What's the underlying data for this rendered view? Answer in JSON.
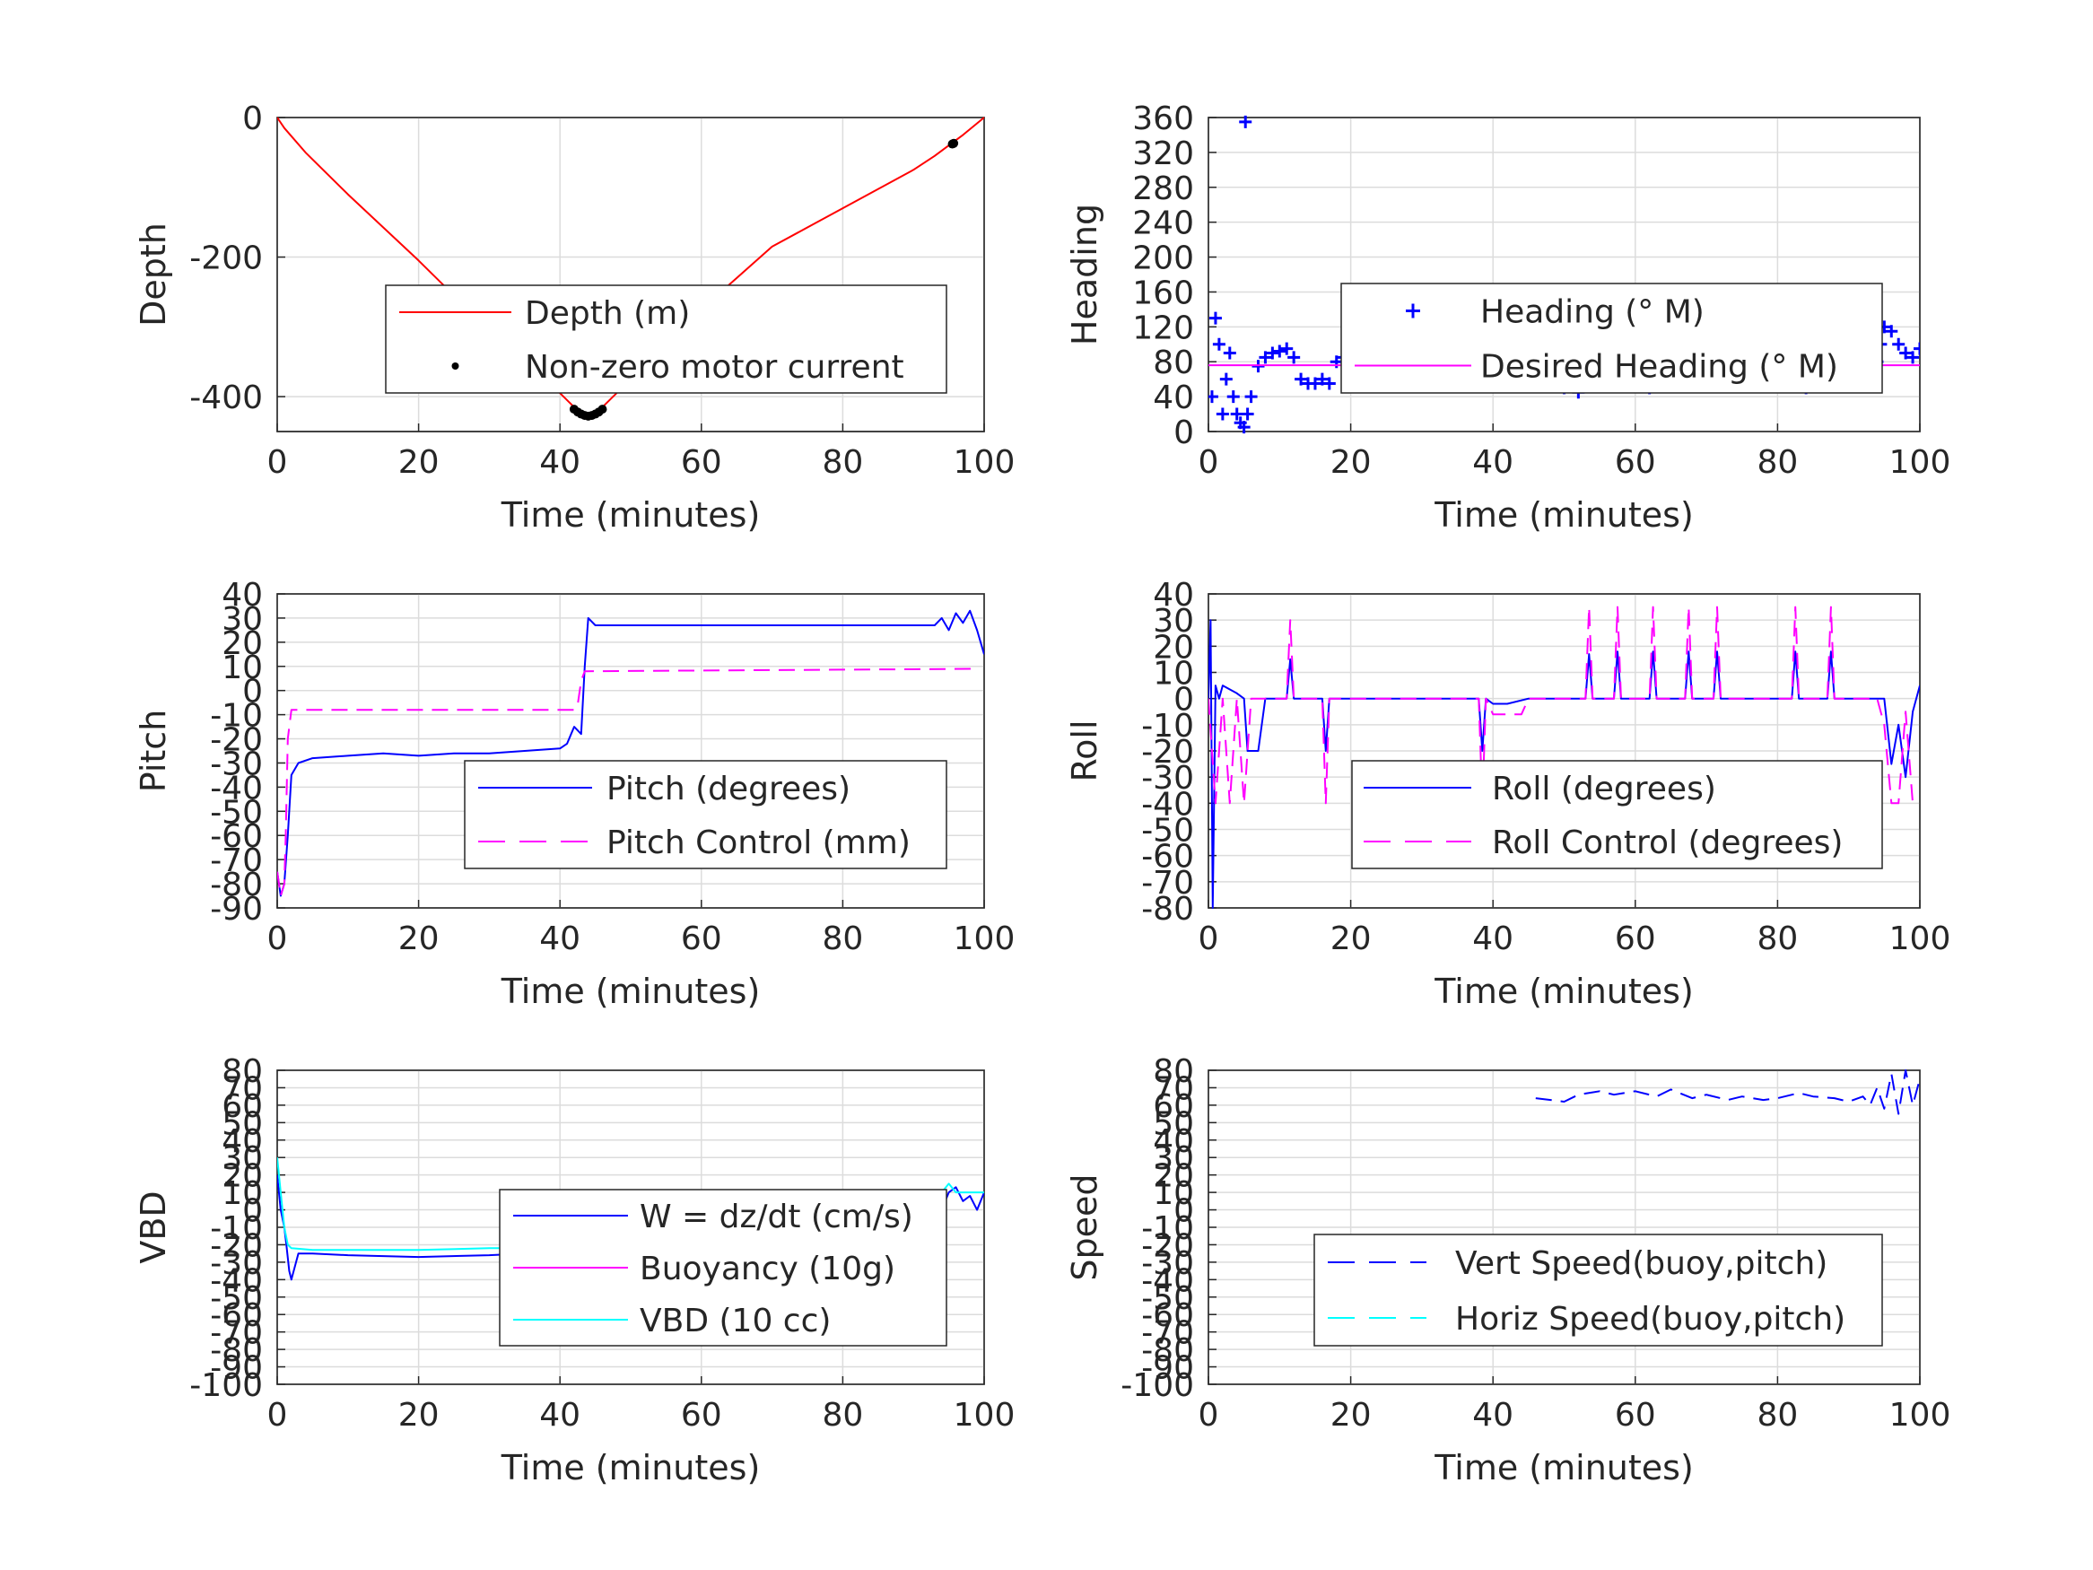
{
  "chart_data": [
    {
      "type": "line",
      "xlabel": "Time (minutes)",
      "ylabel": "Depth",
      "xlim": [
        0,
        100
      ],
      "ylim": [
        -450,
        0
      ],
      "xticks": [
        0,
        20,
        40,
        60,
        80,
        100
      ],
      "yticks": [
        -400,
        -200,
        0
      ],
      "grid": true,
      "legend_placement": "center-right",
      "series": [
        {
          "name": "Depth (m)",
          "color": "#ff0000",
          "style": "solid",
          "marker": "none",
          "x": [
            0,
            1,
            4,
            10,
            20,
            30,
            40,
            42,
            43,
            44,
            45,
            46,
            50,
            60,
            70,
            80,
            90,
            93,
            95,
            97,
            100
          ],
          "y": [
            0,
            -15,
            -50,
            -110,
            -205,
            -305,
            -395,
            -415,
            -425,
            -428,
            -425,
            -415,
            -375,
            -275,
            -185,
            -130,
            -75,
            -55,
            -40,
            -25,
            0
          ]
        },
        {
          "name": "Non-zero motor current",
          "color": "#000000",
          "style": "none",
          "marker": "dot",
          "x": [
            42,
            42.5,
            43,
            43.5,
            44,
            44.5,
            45,
            45.5,
            46,
            95.5,
            95.7
          ],
          "y": [
            -418,
            -422,
            -425,
            -427,
            -428,
            -427,
            -425,
            -422,
            -418,
            -38,
            -37
          ]
        }
      ]
    },
    {
      "type": "scatter",
      "xlabel": "Time (minutes)",
      "ylabel": "Heading",
      "xlim": [
        0,
        100
      ],
      "ylim": [
        0,
        360
      ],
      "xticks": [
        0,
        20,
        40,
        60,
        80,
        100
      ],
      "yticks": [
        0,
        40,
        80,
        120,
        160,
        200,
        240,
        280,
        320,
        360
      ],
      "grid": true,
      "legend_placement": "center-right",
      "series": [
        {
          "name": "Heading (° M)",
          "color": "#0000ff",
          "style": "none",
          "marker": "plus",
          "x": [
            0.5,
            1,
            1.5,
            2,
            2.5,
            3,
            3.5,
            4,
            4.5,
            5,
            5.2,
            5.5,
            6,
            7,
            8,
            9,
            10,
            11,
            12,
            13,
            14,
            15,
            16,
            17,
            18,
            19,
            20,
            22,
            24,
            26,
            28,
            30,
            32,
            34,
            36,
            38,
            40,
            42,
            44,
            46,
            48,
            50,
            52,
            54,
            56,
            58,
            60,
            62,
            64,
            66,
            68,
            70,
            72,
            74,
            76,
            78,
            80,
            82,
            84,
            86,
            88,
            90,
            92,
            94,
            94.5,
            95,
            96,
            97,
            98,
            99,
            100
          ],
          "y": [
            40,
            130,
            100,
            20,
            60,
            90,
            40,
            20,
            10,
            5,
            355,
            20,
            40,
            75,
            85,
            90,
            92,
            95,
            85,
            60,
            55,
            55,
            60,
            55,
            80,
            85,
            78,
            75,
            70,
            65,
            60,
            62,
            60,
            70,
            60,
            58,
            62,
            70,
            65,
            60,
            58,
            50,
            45,
            60,
            65,
            55,
            60,
            50,
            65,
            70,
            60,
            62,
            65,
            60,
            60,
            65,
            60,
            60,
            50,
            65,
            70,
            60,
            65,
            80,
            100,
            120,
            115,
            100,
            90,
            85,
            95
          ]
        },
        {
          "name": "Desired Heading (° M)",
          "color": "#ff00ff",
          "style": "solid",
          "marker": "none",
          "x": [
            0,
            100
          ],
          "y": [
            76,
            76
          ]
        }
      ]
    },
    {
      "type": "line",
      "xlabel": "Time (minutes)",
      "ylabel": "Pitch",
      "xlim": [
        0,
        100
      ],
      "ylim": [
        -90,
        40
      ],
      "xticks": [
        0,
        20,
        40,
        60,
        80,
        100
      ],
      "yticks": [
        -90,
        -80,
        -70,
        -60,
        -50,
        -40,
        -30,
        -20,
        -10,
        0,
        10,
        20,
        30,
        40
      ],
      "grid": true,
      "legend_placement": "bottom-right",
      "series": [
        {
          "name": "Pitch (degrees)",
          "color": "#0000ff",
          "style": "solid",
          "marker": "none",
          "x": [
            0,
            0.5,
            1,
            1.5,
            2,
            3,
            5,
            10,
            15,
            20,
            25,
            30,
            35,
            40,
            41,
            42,
            43,
            43.5,
            44,
            45,
            50,
            60,
            70,
            80,
            90,
            93,
            94,
            95,
            96,
            97,
            98,
            99,
            100
          ],
          "y": [
            -75,
            -85,
            -80,
            -60,
            -35,
            -30,
            -28,
            -27,
            -26,
            -27,
            -26,
            -26,
            -25,
            -24,
            -22,
            -15,
            -18,
            10,
            30,
            27,
            27,
            27,
            27,
            27,
            27,
            27,
            30,
            25,
            32,
            28,
            33,
            25,
            15
          ]
        },
        {
          "name": "Pitch Control (mm)",
          "color": "#ff00ff",
          "style": "dashed",
          "marker": "none",
          "x": [
            0,
            0.5,
            1,
            1.2,
            1.5,
            2,
            42,
            42.5,
            43,
            43.5,
            99
          ],
          "y": [
            -75,
            -85,
            -80,
            -60,
            -20,
            -8,
            -8,
            -6,
            4,
            8,
            9
          ]
        }
      ]
    },
    {
      "type": "line",
      "xlabel": "Time (minutes)",
      "ylabel": "Roll",
      "xlim": [
        0,
        100
      ],
      "ylim": [
        -80,
        40
      ],
      "xticks": [
        0,
        20,
        40,
        60,
        80,
        100
      ],
      "yticks": [
        -80,
        -70,
        -60,
        -50,
        -40,
        -30,
        -20,
        -10,
        0,
        10,
        20,
        30,
        40
      ],
      "grid": true,
      "legend_placement": "bottom-right",
      "series": [
        {
          "name": "Roll (degrees)",
          "color": "#0000ff",
          "style": "solid",
          "marker": "none",
          "x": [
            0,
            0.3,
            0.6,
            1,
            1.5,
            2,
            4,
            5,
            5.5,
            7,
            8,
            11,
            11.5,
            12,
            13,
            16,
            16.5,
            17,
            17.5,
            20,
            38,
            38.5,
            39,
            40,
            42,
            45,
            53,
            53.5,
            54,
            55,
            57,
            57.5,
            58,
            59,
            62,
            62.5,
            63,
            64,
            67,
            67.5,
            68,
            69,
            71,
            71.5,
            72,
            73,
            82,
            82.5,
            83,
            84,
            87,
            87.5,
            88,
            89,
            94,
            95,
            96,
            97,
            98,
            99,
            100
          ],
          "y": [
            0,
            30,
            -80,
            5,
            0,
            5,
            2,
            0,
            -20,
            -20,
            0,
            0,
            15,
            0,
            0,
            0,
            -20,
            0,
            0,
            0,
            0,
            -20,
            0,
            -2,
            -2,
            0,
            0,
            17,
            0,
            0,
            0,
            18,
            0,
            0,
            0,
            18,
            0,
            0,
            0,
            18,
            0,
            0,
            0,
            18,
            0,
            0,
            0,
            18,
            0,
            0,
            0,
            18,
            0,
            0,
            0,
            0,
            -25,
            -10,
            -30,
            -5,
            5
          ]
        },
        {
          "name": "Roll Control (degrees)",
          "color": "#ff00ff",
          "style": "dashed",
          "marker": "none",
          "x": [
            0,
            1,
            2,
            3,
            4,
            5,
            6,
            8,
            11,
            11.5,
            12,
            13,
            16,
            16.5,
            17,
            20,
            38,
            38.5,
            39,
            40,
            44,
            45,
            53,
            53.5,
            54,
            55,
            57,
            57.5,
            58,
            59,
            62,
            62.5,
            63,
            64,
            67,
            67.5,
            68,
            69,
            71,
            71.5,
            72,
            73,
            82,
            82.5,
            83,
            84,
            87,
            87.5,
            88,
            89,
            94,
            95,
            96,
            97,
            98,
            99
          ],
          "y": [
            0,
            -40,
            0,
            -40,
            0,
            -40,
            0,
            0,
            0,
            30,
            0,
            0,
            0,
            -40,
            0,
            0,
            0,
            -40,
            0,
            -6,
            -6,
            0,
            0,
            35,
            0,
            0,
            0,
            35,
            0,
            0,
            0,
            35,
            0,
            0,
            0,
            35,
            0,
            0,
            0,
            35,
            0,
            0,
            0,
            35,
            0,
            0,
            0,
            35,
            0,
            0,
            0,
            -10,
            -40,
            -40,
            -5,
            -40
          ]
        }
      ]
    },
    {
      "type": "line",
      "xlabel": "Time (minutes)",
      "ylabel": "VBD",
      "xlim": [
        0,
        100
      ],
      "ylim": [
        -100,
        80
      ],
      "xticks": [
        0,
        20,
        40,
        60,
        80,
        100
      ],
      "yticks": [
        -100,
        -90,
        -80,
        -70,
        -60,
        -50,
        -40,
        -30,
        -20,
        -10,
        0,
        10,
        20,
        30,
        40,
        50,
        60,
        70,
        80
      ],
      "grid": true,
      "legend_placement": "center-right",
      "series": [
        {
          "name": "W = dz/dt (cm/s)",
          "color": "#0000ff",
          "style": "solid",
          "marker": "none",
          "x": [
            0,
            0.5,
            1,
            1.3,
            1.7,
            2,
            3,
            5,
            10,
            20,
            30,
            35,
            40,
            41,
            42,
            43,
            44,
            45,
            46,
            48,
            50,
            55,
            60,
            70,
            80,
            90,
            93,
            94,
            95,
            96,
            97,
            98,
            99,
            100
          ],
          "y": [
            20,
            0,
            -10,
            -20,
            -35,
            -40,
            -25,
            -25,
            -26,
            -27,
            -26,
            -25,
            -24,
            -23,
            -22,
            -12,
            -5,
            0,
            10,
            10,
            10,
            11,
            11,
            10,
            10,
            9,
            10,
            0,
            10,
            13,
            5,
            8,
            0,
            10
          ]
        },
        {
          "name": "Buoyancy (10g)",
          "color": "#ff00ff",
          "style": "solid",
          "marker": "none",
          "x": [],
          "y": []
        },
        {
          "name": "VBD (10 cc)",
          "color": "#00ffff",
          "style": "solid",
          "marker": "none",
          "x": [
            0,
            0.5,
            1,
            1.5,
            2,
            5,
            10,
            20,
            30,
            40,
            42,
            43,
            44,
            45,
            46,
            50,
            60,
            70,
            80,
            90,
            94,
            95,
            96,
            100
          ],
          "y": [
            30,
            10,
            -10,
            -20,
            -22,
            -23,
            -23,
            -23,
            -22,
            -22,
            -20,
            -10,
            0,
            8,
            10,
            10,
            10,
            10,
            10,
            10,
            10,
            15,
            10,
            10
          ]
        }
      ]
    },
    {
      "type": "line",
      "xlabel": "Time (minutes)",
      "ylabel": "Speed",
      "xlim": [
        0,
        100
      ],
      "ylim": [
        -100,
        80
      ],
      "xticks": [
        0,
        20,
        40,
        60,
        80,
        100
      ],
      "yticks": [
        -100,
        -90,
        -80,
        -70,
        -60,
        -50,
        -40,
        -30,
        -20,
        -10,
        0,
        10,
        20,
        30,
        40,
        50,
        60,
        70,
        80
      ],
      "grid": true,
      "legend_placement": "bottom-right",
      "series": [
        {
          "name": "Vert Speed(buoy,pitch)",
          "color": "#0000ff",
          "style": "dashed",
          "marker": "none",
          "x": [
            46,
            50,
            52,
            55,
            57,
            60,
            63,
            65,
            68,
            70,
            73,
            75,
            78,
            80,
            83,
            85,
            88,
            90,
            92,
            93,
            94,
            95,
            96,
            97,
            98,
            99,
            100
          ],
          "y": [
            64,
            62,
            66,
            68,
            66,
            68,
            65,
            69,
            64,
            66,
            63,
            65,
            63,
            64,
            67,
            65,
            64,
            62,
            65,
            60,
            70,
            58,
            78,
            55,
            80,
            60,
            75
          ]
        },
        {
          "name": "Horiz Speed(buoy,pitch)",
          "color": "#00ffff",
          "style": "dashed",
          "marker": "none",
          "x": [],
          "y": []
        }
      ]
    }
  ]
}
